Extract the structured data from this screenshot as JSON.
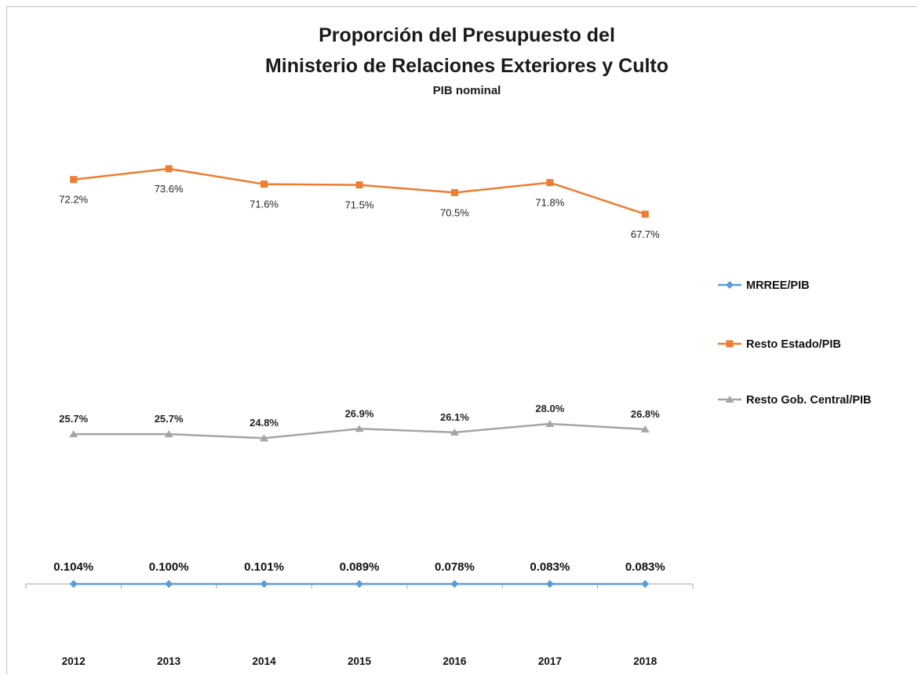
{
  "chart_data": {
    "type": "line",
    "title_lines": [
      "Proporción del Presupuesto del",
      "Ministerio de Relaciones Exteriores y Culto"
    ],
    "subtitle": "PIB nominal",
    "categories": [
      "2012",
      "2013",
      "2014",
      "2015",
      "2016",
      "2017",
      "2018"
    ],
    "series": [
      {
        "name": "MRREE/PIB",
        "marker": "diamond",
        "color": "#5b9bd5",
        "values": [
          0.104,
          0.1,
          0.101,
          0.089,
          0.078,
          0.083,
          0.083
        ],
        "labels": [
          "0.104%",
          "0.100%",
          "0.101%",
          "0.089%",
          "0.078%",
          "0.083%",
          "0.083%"
        ]
      },
      {
        "name": "Resto Estado/PIB",
        "marker": "square",
        "color": "#ed7d31",
        "values": [
          72.2,
          73.6,
          71.6,
          71.5,
          70.5,
          71.8,
          67.7
        ],
        "labels": [
          "72.2%",
          "73.6%",
          "71.6%",
          "71.5%",
          "70.5%",
          "71.8%",
          "67.7%"
        ]
      },
      {
        "name": "Resto Gob. Central/PIB",
        "marker": "triangle",
        "color": "#a5a5a5",
        "values": [
          25.7,
          25.7,
          24.8,
          26.9,
          26.1,
          28.0,
          26.8
        ],
        "labels": [
          "25.7%",
          "25.7%",
          "24.8%",
          "26.9%",
          "26.1%",
          "28.0%",
          "26.8%"
        ]
      }
    ],
    "y_unit": "%",
    "grid": false,
    "legend_position": "right",
    "axis_color": "#a6a6a6"
  }
}
